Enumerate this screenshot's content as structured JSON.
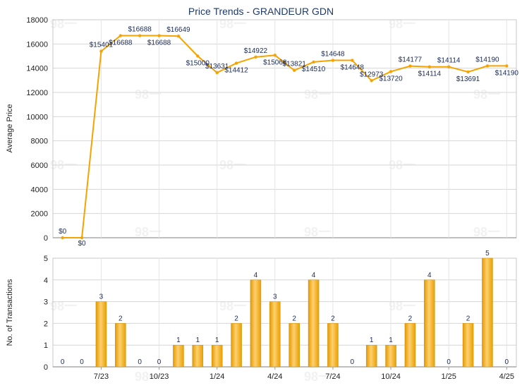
{
  "chart_data": [
    {
      "type": "line",
      "title": "Price Trends - GRANDEUR GDN",
      "ylabel": "Average Price",
      "ylim": [
        0,
        18000
      ],
      "yticks": [
        0,
        2000,
        4000,
        6000,
        8000,
        10000,
        12000,
        14000,
        16000,
        18000
      ],
      "grid": true,
      "color": "#f5a300",
      "x": [
        "2023-05",
        "2023-06",
        "2023-07",
        "2023-08",
        "2023-09",
        "2023-10",
        "2023-11",
        "2023-12",
        "2024-01",
        "2024-02",
        "2024-03",
        "2024-04",
        "2024-05",
        "2024-06",
        "2024-07",
        "2024-08",
        "2024-09",
        "2024-10",
        "2024-11",
        "2024-12",
        "2025-01",
        "2025-02",
        "2025-03",
        "2025-04"
      ],
      "values": [
        0,
        0,
        15401,
        16688,
        16688,
        16688,
        16649,
        15000,
        13631,
        14412,
        14922,
        15068,
        13821,
        14510,
        14648,
        14648,
        12973,
        13720,
        14177,
        14114,
        14114,
        13691,
        14190,
        14190
      ],
      "labels": [
        "$0",
        "$0",
        "$15401",
        "$16688",
        "$16688",
        "$16688",
        "$16649",
        "$15000",
        "$13631",
        "$14412",
        "$14922",
        "$15068",
        "$13821",
        "$14510",
        "$14648",
        "$14648",
        "$12973",
        "$13720",
        "$14177",
        "$14114",
        "$14114",
        "$13691",
        "$14190",
        "$14190"
      ]
    },
    {
      "type": "bar",
      "ylabel": "No. of Transactions",
      "ylim": [
        0,
        5
      ],
      "yticks": [
        0,
        1,
        2,
        3,
        4,
        5
      ],
      "grid": true,
      "x": [
        "2023-05",
        "2023-06",
        "2023-07",
        "2023-08",
        "2023-09",
        "2023-10",
        "2023-11",
        "2023-12",
        "2024-01",
        "2024-02",
        "2024-03",
        "2024-04",
        "2024-05",
        "2024-06",
        "2024-07",
        "2024-08",
        "2024-09",
        "2024-10",
        "2024-11",
        "2024-12",
        "2025-01",
        "2025-02",
        "2025-03",
        "2025-04"
      ],
      "values": [
        0,
        0,
        3,
        2,
        0,
        0,
        1,
        1,
        1,
        2,
        4,
        3,
        2,
        4,
        2,
        0,
        1,
        1,
        2,
        4,
        0,
        2,
        5,
        0
      ],
      "xtick_labels": [
        {
          "month": "2023-07",
          "label": "7/23"
        },
        {
          "month": "2023-10",
          "label": "10/23"
        },
        {
          "month": "2024-01",
          "label": "1/24"
        },
        {
          "month": "2024-04",
          "label": "4/24"
        },
        {
          "month": "2024-07",
          "label": "7/24"
        },
        {
          "month": "2024-10",
          "label": "10/24"
        },
        {
          "month": "2025-01",
          "label": "1/25"
        },
        {
          "month": "2025-04",
          "label": "4/25"
        }
      ]
    }
  ],
  "watermark_text": "98一"
}
